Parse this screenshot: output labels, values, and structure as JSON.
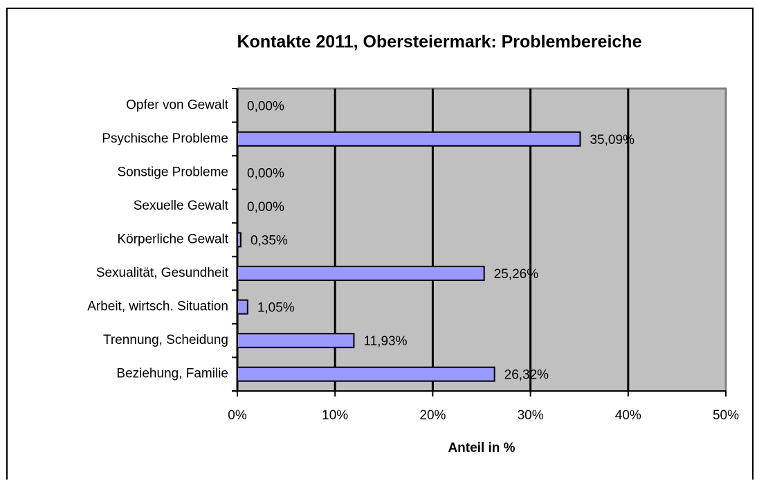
{
  "chart_data": {
    "type": "bar",
    "orientation": "horizontal",
    "title": "Kontakte 2011, Obersteiermark:  Problembereiche",
    "xlabel": "Anteil in %",
    "categories": [
      "Opfer von Gewalt",
      "Psychische Probleme",
      "Sonstige Probleme",
      "Sexuelle Gewalt",
      "Körperliche Gewalt",
      "Sexualität, Gesundheit",
      "Arbeit, wirtsch. Situation",
      "Trennung,  Scheidung",
      "Beziehung,  Familie"
    ],
    "values": [
      0,
      35.09,
      0,
      0,
      0.35,
      25.26,
      1.05,
      11.93,
      26.32
    ],
    "value_labels": [
      "0,00%",
      "35,09%",
      "0,00%",
      "0,00%",
      "0,35%",
      "25,26%",
      "1,05%",
      "11,93%",
      "26,32%"
    ],
    "color": "#9999ff",
    "xlim": [
      0,
      50
    ],
    "xticks": [
      {
        "value": 0,
        "label": "0%"
      },
      {
        "value": 10,
        "label": "10%"
      },
      {
        "value": 20,
        "label": "20%"
      },
      {
        "value": 30,
        "label": "30%"
      },
      {
        "value": 40,
        "label": "40%"
      },
      {
        "value": 50,
        "label": "50%"
      }
    ],
    "grid": true
  }
}
